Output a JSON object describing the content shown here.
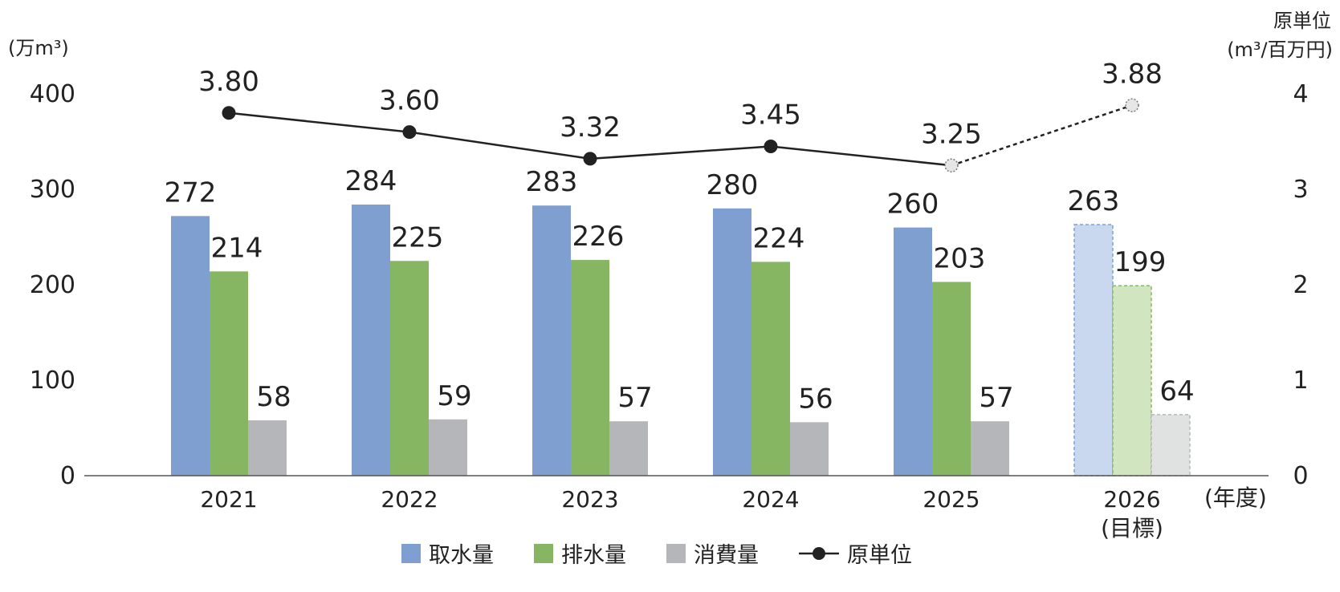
{
  "chart_data": {
    "type": "bar",
    "categories": [
      "2021",
      "2022",
      "2023",
      "2024",
      "2025",
      "2026"
    ],
    "category_note": {
      "index": 5,
      "text": "(目標)"
    },
    "x_unit": "(年度)",
    "left_axis": {
      "unit": "(万m³)",
      "ylim": [
        0,
        400
      ],
      "ticks": [
        "0",
        "100",
        "200",
        "300",
        "400"
      ]
    },
    "right_axis": {
      "title": "原単位",
      "unit": "(m³/百万円)",
      "ylim": [
        0,
        4
      ],
      "ticks": [
        "0",
        "1",
        "2",
        "3",
        "4"
      ]
    },
    "series": [
      {
        "name": "取水量",
        "kind": "bar",
        "axis": "left",
        "color": "#7f9fd1",
        "target_color": "#c9d7ef",
        "values": [
          272,
          284,
          283,
          280,
          260,
          263
        ]
      },
      {
        "name": "排水量",
        "kind": "bar",
        "axis": "left",
        "color": "#86b662",
        "target_color": "#d1e6c0",
        "values": [
          214,
          225,
          226,
          224,
          203,
          199
        ]
      },
      {
        "name": "消費量",
        "kind": "bar",
        "axis": "left",
        "color": "#b5b6ba",
        "target_color": "#e0e2e2",
        "values": [
          58,
          59,
          57,
          56,
          57,
          64
        ]
      },
      {
        "name": "原単位",
        "kind": "line",
        "axis": "right",
        "color": "#222222",
        "values": [
          3.8,
          3.6,
          3.32,
          3.45,
          3.25,
          3.88
        ],
        "labels": [
          "3.80",
          "3.60",
          "3.32",
          "3.45",
          "3.25",
          "3.88"
        ]
      }
    ],
    "target_index": 5,
    "legend_position": "bottom",
    "grid": false
  }
}
